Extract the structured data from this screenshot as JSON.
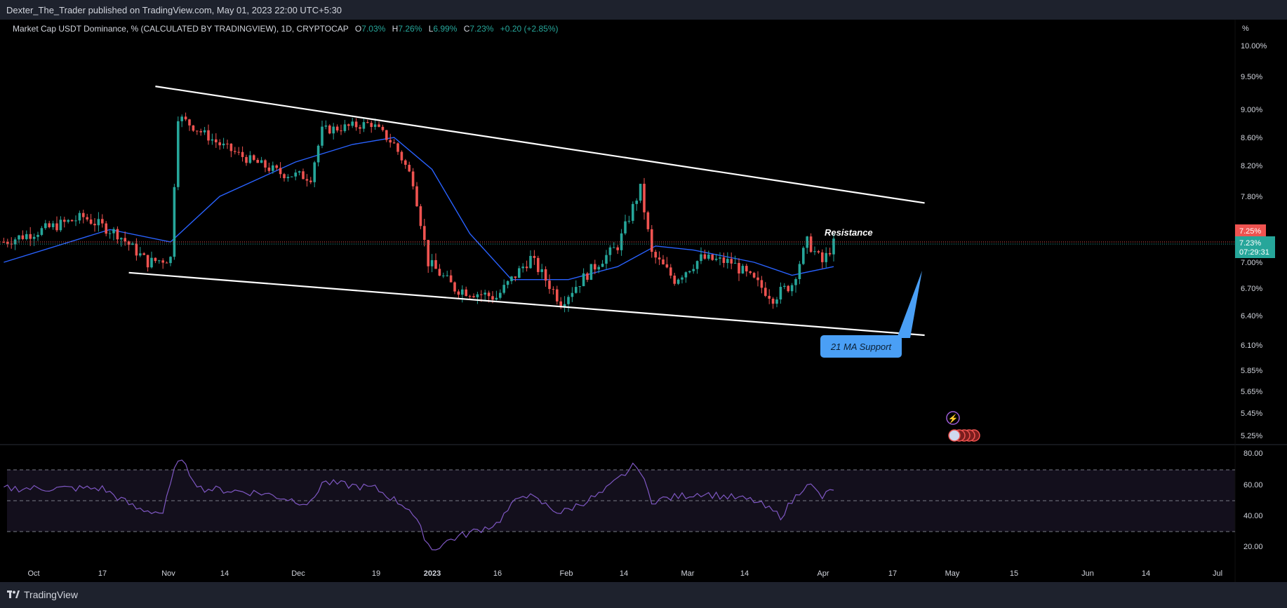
{
  "header": {
    "publisher_text": "Dexter_The_Trader published on TradingView.com, May 01, 2023 22:00 UTC+5:30"
  },
  "legend": {
    "symbol_text": "Market Cap USDT Dominance, % (CALCULATED BY TRADINGVIEW), 1D, CRYPTOCAP",
    "open_label": "O",
    "open_value": "7.03%",
    "high_label": "H",
    "high_value": "7.26%",
    "low_label": "L",
    "low_value": "6.99%",
    "close_label": "C",
    "close_value": "7.23%",
    "change_value": "+0.20 (+2.85%)"
  },
  "price_axis": {
    "unit_label": "%",
    "ticks": [
      "10.00%",
      "9.50%",
      "9.00%",
      "8.60%",
      "8.20%",
      "7.80%",
      "7.00%",
      "6.70%",
      "6.40%",
      "6.10%",
      "5.85%",
      "5.65%",
      "5.45%",
      "5.25%"
    ],
    "badge_high": "7.25%",
    "badge_current": "7.23%",
    "badge_countdown": "07:29:31"
  },
  "rsi_axis": {
    "ticks": [
      "80.00",
      "60.00",
      "40.00",
      "20.00"
    ]
  },
  "time_axis": {
    "ticks": [
      "Oct",
      "17",
      "Nov",
      "14",
      "Dec",
      "19",
      "2023",
      "16",
      "Feb",
      "14",
      "Mar",
      "14",
      "Apr",
      "17",
      "May",
      "15",
      "Jun",
      "14",
      "Jul"
    ]
  },
  "annotations": {
    "resistance": "Resistance",
    "ma_support": "21 MA Support"
  },
  "footer": {
    "brand": "TradingView"
  },
  "colors": {
    "up": "#26a69a",
    "down": "#ef5350",
    "ma": "#2962ff",
    "rsi": "#7e57c2",
    "callout": "#4a9ff5"
  },
  "chart_data": {
    "type": "candlestick",
    "title": "Market Cap USDT Dominance, % (CALCULATED BY TRADINGVIEW), 1D, CRYPTOCAP",
    "y_unit": "%",
    "x_range": [
      "2022-09-23",
      "2023-07-01"
    ],
    "price_anchors": [
      {
        "date": "2022-09-24",
        "close": 7.25
      },
      {
        "date": "2022-10-15",
        "close": 7.55
      },
      {
        "date": "2022-10-24",
        "close": 7.35
      },
      {
        "date": "2022-11-01",
        "close": 7.0
      },
      {
        "date": "2022-11-07",
        "close": 7.05
      },
      {
        "date": "2022-11-09",
        "close": 8.9
      },
      {
        "date": "2022-11-20",
        "close": 8.5
      },
      {
        "date": "2022-11-27",
        "close": 8.3
      },
      {
        "date": "2022-12-06",
        "close": 8.1
      },
      {
        "date": "2022-12-14",
        "close": 8.05
      },
      {
        "date": "2022-12-17",
        "close": 8.7
      },
      {
        "date": "2022-12-30",
        "close": 8.8
      },
      {
        "date": "2023-01-05",
        "close": 8.5
      },
      {
        "date": "2023-01-10",
        "close": 8.0
      },
      {
        "date": "2023-01-14",
        "close": 7.0
      },
      {
        "date": "2023-01-21",
        "close": 6.7
      },
      {
        "date": "2023-02-01",
        "close": 6.6
      },
      {
        "date": "2023-02-10",
        "close": 7.05
      },
      {
        "date": "2023-02-18",
        "close": 6.55
      },
      {
        "date": "2023-02-28",
        "close": 7.0
      },
      {
        "date": "2023-03-05",
        "close": 7.2
      },
      {
        "date": "2023-03-11",
        "close": 7.9
      },
      {
        "date": "2023-03-14",
        "close": 7.1
      },
      {
        "date": "2023-03-20",
        "close": 6.8
      },
      {
        "date": "2023-03-27",
        "close": 7.05
      },
      {
        "date": "2023-04-04",
        "close": 7.0
      },
      {
        "date": "2023-04-15",
        "close": 6.6
      },
      {
        "date": "2023-04-20",
        "close": 6.75
      },
      {
        "date": "2023-04-24",
        "close": 7.25
      },
      {
        "date": "2023-04-28",
        "close": 7.0
      },
      {
        "date": "2023-05-01",
        "close": 7.23
      }
    ],
    "ma21_anchors": [
      {
        "date": "2022-09-24",
        "value": 7.0
      },
      {
        "date": "2022-10-22",
        "value": 7.4
      },
      {
        "date": "2022-11-07",
        "value": 7.25
      },
      {
        "date": "2022-11-20",
        "value": 7.8
      },
      {
        "date": "2022-12-10",
        "value": 8.25
      },
      {
        "date": "2022-12-25",
        "value": 8.5
      },
      {
        "date": "2023-01-05",
        "value": 8.6
      },
      {
        "date": "2023-01-15",
        "value": 8.15
      },
      {
        "date": "2023-01-25",
        "value": 7.35
      },
      {
        "date": "2023-02-05",
        "value": 6.8
      },
      {
        "date": "2023-02-20",
        "value": 6.8
      },
      {
        "date": "2023-03-05",
        "value": 6.95
      },
      {
        "date": "2023-03-15",
        "value": 7.2
      },
      {
        "date": "2023-03-25",
        "value": 7.15
      },
      {
        "date": "2023-04-10",
        "value": 7.0
      },
      {
        "date": "2023-04-20",
        "value": 6.85
      },
      {
        "date": "2023-05-01",
        "value": 6.95
      }
    ],
    "rsi_anchors": [
      {
        "date": "2022-09-24",
        "value": 58
      },
      {
        "date": "2022-10-20",
        "value": 58
      },
      {
        "date": "2022-10-29",
        "value": 45
      },
      {
        "date": "2022-11-05",
        "value": 42
      },
      {
        "date": "2022-11-09",
        "value": 78
      },
      {
        "date": "2022-11-15",
        "value": 58
      },
      {
        "date": "2022-12-01",
        "value": 55
      },
      {
        "date": "2022-12-14",
        "value": 48
      },
      {
        "date": "2022-12-17",
        "value": 62
      },
      {
        "date": "2022-12-31",
        "value": 58
      },
      {
        "date": "2023-01-09",
        "value": 45
      },
      {
        "date": "2023-01-15",
        "value": 18
      },
      {
        "date": "2023-01-20",
        "value": 25
      },
      {
        "date": "2023-02-01",
        "value": 35
      },
      {
        "date": "2023-02-08",
        "value": 55
      },
      {
        "date": "2023-02-18",
        "value": 42
      },
      {
        "date": "2023-03-01",
        "value": 55
      },
      {
        "date": "2023-03-10",
        "value": 74
      },
      {
        "date": "2023-03-14",
        "value": 50
      },
      {
        "date": "2023-03-27",
        "value": 55
      },
      {
        "date": "2023-04-10",
        "value": 50
      },
      {
        "date": "2023-04-17",
        "value": 40
      },
      {
        "date": "2023-04-24",
        "value": 62
      },
      {
        "date": "2023-04-28",
        "value": 52
      },
      {
        "date": "2023-05-01",
        "value": 58
      }
    ],
    "resistance_level": 7.25,
    "channel_upper": [
      {
        "date": "2022-11-03",
        "value": 9.35
      },
      {
        "date": "2023-05-25",
        "value": 7.72
      }
    ],
    "channel_lower": [
      {
        "date": "2022-10-27",
        "value": 6.88
      },
      {
        "date": "2023-05-25",
        "value": 6.2
      }
    ],
    "rsi_bands": [
      70,
      50,
      30
    ],
    "ylim_rsi": [
      10,
      85
    ]
  }
}
